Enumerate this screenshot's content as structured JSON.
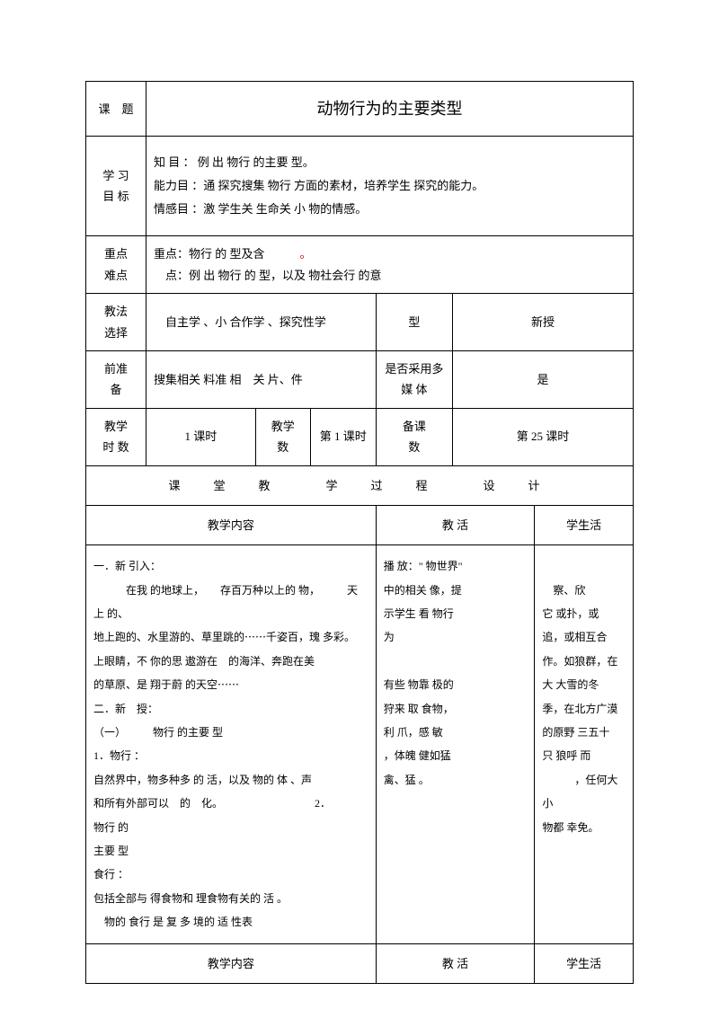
{
  "header": {
    "label_topic": "课　题",
    "title": "动物行为的主要类型",
    "label_goals": "学 习\n目 标",
    "goals_line1": "知 目 ：          例 出 物行 的主要 型。",
    "goals_line2": "能力目 ：通 探究搜集 物行 方面的素材，培养学生 探究的能力。",
    "goals_line3": "情感目 ：激 学生关 生命关 小 物的情感。",
    "label_keypoints": "重点\n难点",
    "keypoints_line1": "重点：物行 的 型及含",
    "keypoints_line1_red": "。",
    "keypoints_line2": "　点：例 出 物行 的 型，以及 物社会行 的意",
    "label_method": "教法\n选择",
    "method": "自主学 、小 合作学 、探究性学",
    "label_type": "型",
    "type": "新授",
    "label_prep": "前准\n备",
    "prep": "搜集相关 料准 相　关 片、件",
    "label_media": "是否采用多\n媒 体",
    "media": "是",
    "label_hours": "教学\n时 数",
    "hours": "1 课时",
    "label_teachcount": "教学\n数",
    "teachcount": "第 1 课时",
    "label_prepcount": "备课\n数",
    "prepcount": "第 25 课时"
  },
  "section_title": "课　堂　教　　学　过　程　　设　计",
  "cols": {
    "content": "教学内容",
    "teach": "教 活",
    "student": "学生活"
  },
  "body": {
    "content_lines": [
      "一．新 引入：",
      "　　　在我 的地球上，　　存百万种以上的 物，　　　天上 的、",
      "地上跑的、水里游的、草里跳的⋯⋯千姿百，瑰 多彩。",
      " 上眼睛，不 你的思 遨游在　的海洋、奔跑在美",
      "的草原、是 翔于蔚 的天空⋯⋯",
      "二．新　授：",
      "（一）　　　物行 的主要 型",
      "1．物行 ：",
      "自然界中，物多种多 的 活，以及 物的 体 、声",
      "和所有外部可以　的　化。　　　　　　　　　2．　　　　　物行 的",
      "主要 型",
      " 食行 ：",
      "包括全部与 得食物和 理食物有关的 活 。",
      "　物的 食行 是 复 多  境的 适 性表"
    ],
    "teach_lines": [
      "播 放：\" 物世界\"",
      "中的相关 像，提",
      "示学生 看 物行",
      "为",
      "",
      "有些 物靠 极的",
      " 狩来 取 食物，",
      "利  爪，感 敏",
      "，体魄 健如猛",
      "禽、猛 。"
    ],
    "student_lines": [
      "",
      "　察、欣",
      "它 或扑，或",
      "追，或相互合",
      "作。如狼群，在",
      "大 大雪的冬",
      "季，在北方广漠",
      "的原野 三五十",
      "只 狼呼 而",
      "　　　，​任何大小",
      " 物都 幸免。"
    ]
  }
}
